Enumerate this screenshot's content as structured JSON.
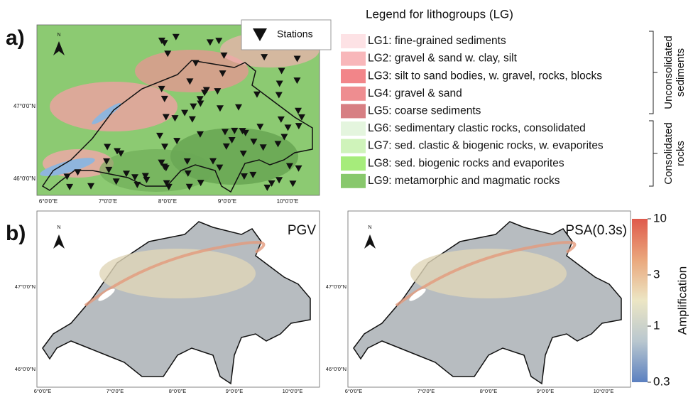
{
  "panel_a": {
    "label": "a)",
    "stations_legend": "Stations",
    "north": "N",
    "lon_ticks": [
      "6°0'0\"E",
      "7°0'0\"E",
      "8°0'0\"E",
      "9°0'0\"E",
      "10°0'0\"E"
    ],
    "lat_ticks": [
      "47°0'0\"N",
      "46°0'0\"N"
    ]
  },
  "legend": {
    "title": "Legend for lithogroups (LG)",
    "items": [
      {
        "label": "LG1: fine-grained sediments",
        "color": "#fde2e5"
      },
      {
        "label": "LG2: gravel & sand w. clay, silt",
        "color": "#f8b7ba"
      },
      {
        "label": "LG3: silt to sand bodies, w. gravel, rocks, blocks",
        "color": "#f28589"
      },
      {
        "label": "LG4: gravel & sand",
        "color": "#ee8d90"
      },
      {
        "label": "LG5: coarse sediments",
        "color": "#d77f83"
      },
      {
        "label": "LG6: sedimentary clastic rocks, consolidated",
        "color": "#e4f5de"
      },
      {
        "label": "LG7: sed. clastic & biogenic rocks, w. evaporites",
        "color": "#cff3ba"
      },
      {
        "label": "LG8: sed. biogenic rocks and evaporites",
        "color": "#a6ec7b"
      },
      {
        "label": "LG9: metamorphic and magmatic rocks",
        "color": "#88c86c"
      }
    ],
    "groups": [
      {
        "lines": [
          "Unconsolidated",
          "sediments"
        ]
      },
      {
        "lines": [
          "Consolidated",
          "rocks"
        ]
      }
    ]
  },
  "panel_b": {
    "label": "b)",
    "maps": [
      {
        "title": "PGV",
        "north": "N",
        "lon_ticks": [
          "6°0'0\"E",
          "7°0'0\"E",
          "8°0'0\"E",
          "9°0'0\"E",
          "10°0'0\"E"
        ],
        "lat_ticks": [
          "47°0'0\"N",
          "46°0'0\"N"
        ]
      },
      {
        "title": "PSA(0.3s)",
        "north": "N",
        "lon_ticks": [
          "6°0'0\"E",
          "7°0'0\"E",
          "8°0'0\"E",
          "9°0'0\"E",
          "10°0'0\"E"
        ],
        "lat_ticks": [
          "47°0'0\"N",
          "46°0'0\"N"
        ]
      }
    ],
    "colorbar": {
      "label": "Amplification",
      "scale": "log",
      "lim": [
        0.3,
        10
      ],
      "ticks": [
        10,
        3,
        1,
        0.3
      ],
      "colors": [
        "#5b80c0",
        "#b9c7cf",
        "#ece6c4",
        "#eaa77c",
        "#df5a4c"
      ]
    }
  }
}
